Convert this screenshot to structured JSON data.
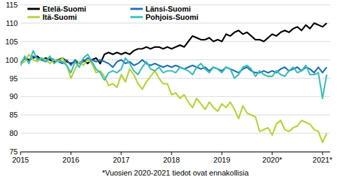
{
  "chart_data": {
    "type": "line",
    "x": [
      2015,
      2015.083,
      2015.167,
      2015.25,
      2015.333,
      2015.417,
      2015.5,
      2015.583,
      2015.667,
      2015.75,
      2015.833,
      2015.917,
      2016,
      2016.083,
      2016.167,
      2016.25,
      2016.333,
      2016.417,
      2016.5,
      2016.583,
      2016.667,
      2016.75,
      2016.833,
      2016.917,
      2017,
      2017.083,
      2017.167,
      2017.25,
      2017.333,
      2017.417,
      2017.5,
      2017.583,
      2017.667,
      2017.75,
      2017.833,
      2017.917,
      2018,
      2018.083,
      2018.167,
      2018.25,
      2018.333,
      2018.417,
      2018.5,
      2018.583,
      2018.667,
      2018.75,
      2018.833,
      2018.917,
      2019,
      2019.083,
      2019.167,
      2019.25,
      2019.333,
      2019.417,
      2019.5,
      2019.583,
      2019.667,
      2019.75,
      2019.833,
      2019.917,
      2020,
      2020.083,
      2020.167,
      2020.25,
      2020.333,
      2020.417,
      2020.5,
      2020.583,
      2020.667,
      2020.75,
      2020.833,
      2020.917,
      2021,
      2021.083
    ],
    "series": [
      {
        "name": "Etelä-Suomi",
        "color": "#000000",
        "values": [
          99,
          100.5,
          100,
          100.5,
          101,
          100,
          100.5,
          100,
          99.5,
          100,
          100.5,
          99.5,
          99,
          99.5,
          99,
          100,
          99,
          100,
          100.5,
          99,
          101.5,
          102,
          101.5,
          102,
          101.5,
          102,
          101.5,
          102.5,
          103,
          103,
          103.5,
          103,
          103.5,
          103.5,
          103,
          103.5,
          103,
          103.5,
          104,
          103.5,
          105,
          106.5,
          106,
          105.5,
          105.5,
          106,
          105,
          105.5,
          105,
          107,
          106.5,
          107.5,
          108,
          107,
          107.5,
          106.5,
          105.5,
          105.5,
          105,
          106,
          107,
          106.5,
          107.5,
          108,
          107.5,
          108.5,
          109,
          108,
          109.5,
          108.5,
          110,
          109.5,
          109,
          110
        ]
      },
      {
        "name": "Länsi-Suomi",
        "color": "#1f6fb2",
        "values": [
          99,
          100.5,
          99.5,
          101,
          100.5,
          100,
          99.5,
          100.5,
          100,
          99.5,
          99,
          100,
          98.5,
          100,
          99,
          99.5,
          100.5,
          100,
          99.5,
          100,
          99.5,
          99,
          98,
          99.5,
          100,
          99,
          99.5,
          98.5,
          99,
          100,
          99,
          98.5,
          99,
          98.5,
          98,
          98.5,
          98,
          98.5,
          98,
          97.5,
          98,
          98.5,
          98,
          97.5,
          98,
          97,
          98,
          97.5,
          97,
          98,
          97.5,
          97,
          96.5,
          97.5,
          98,
          97,
          96.5,
          96.5,
          97,
          96.5,
          97,
          96.5,
          97.5,
          98,
          97,
          97.5,
          98,
          97,
          98,
          97.5,
          96.5,
          98,
          96.5,
          98
        ]
      },
      {
        "name": "Itä-Suomi",
        "color": "#b5d23a",
        "values": [
          99,
          99.5,
          101.5,
          100,
          99.5,
          100.5,
          100,
          99,
          100,
          99.5,
          100.5,
          98.5,
          95,
          97.5,
          99.5,
          98.5,
          100,
          99,
          96.5,
          97,
          95.5,
          93,
          93.5,
          92.5,
          96,
          94,
          97.5,
          96,
          93.5,
          92,
          94,
          95.5,
          97,
          95,
          93.5,
          93.5,
          90.5,
          91,
          89.5,
          90.5,
          88.5,
          87,
          89.5,
          88,
          86.5,
          88.5,
          87,
          86,
          88,
          87,
          88.5,
          86.5,
          84,
          87.5,
          85.5,
          85,
          84.5,
          80.5,
          81,
          81.5,
          79.5,
          82.5,
          83.5,
          81,
          80.5,
          81.5,
          82,
          83.5,
          83,
          82.5,
          81,
          80.5,
          77.5,
          80
        ]
      },
      {
        "name": "Pohjois-Suomi",
        "color": "#3dbdb6",
        "values": [
          98.5,
          101,
          99,
          102.5,
          100,
          100.5,
          99.5,
          101,
          99,
          100,
          99.5,
          98.5,
          96.5,
          99.5,
          98,
          100.5,
          101.5,
          99.5,
          97.5,
          96.5,
          94.5,
          96.5,
          97,
          96.5,
          97.5,
          100.5,
          99,
          97,
          96,
          98,
          99.5,
          97.5,
          97,
          98,
          96.5,
          97,
          97,
          96.5,
          98,
          97.5,
          97,
          96,
          98,
          99,
          97.5,
          96.5,
          98,
          97.5,
          96.5,
          98,
          97.5,
          95,
          96,
          98,
          98.5,
          97.5,
          95.5,
          97,
          96,
          95.5,
          95.5,
          97,
          96,
          95.5,
          97,
          98,
          96.5,
          97,
          98.5,
          96,
          96,
          96.5,
          89.5,
          96
        ]
      }
    ],
    "xlim": [
      2015,
      2021.15
    ],
    "xticks": [
      2015,
      2016,
      2017,
      2018,
      2019,
      {
        "value": 2020,
        "label": "2020*"
      },
      {
        "value": 2021,
        "label": "2021*"
      }
    ],
    "ylim": [
      75,
      115
    ],
    "yticks": [
      75,
      80,
      85,
      90,
      95,
      100,
      105,
      110,
      115
    ],
    "grid": true,
    "legend": "top",
    "annotations": [
      "*Vuosien 2020-2021 tiedot ovat ennakollisia"
    ]
  }
}
